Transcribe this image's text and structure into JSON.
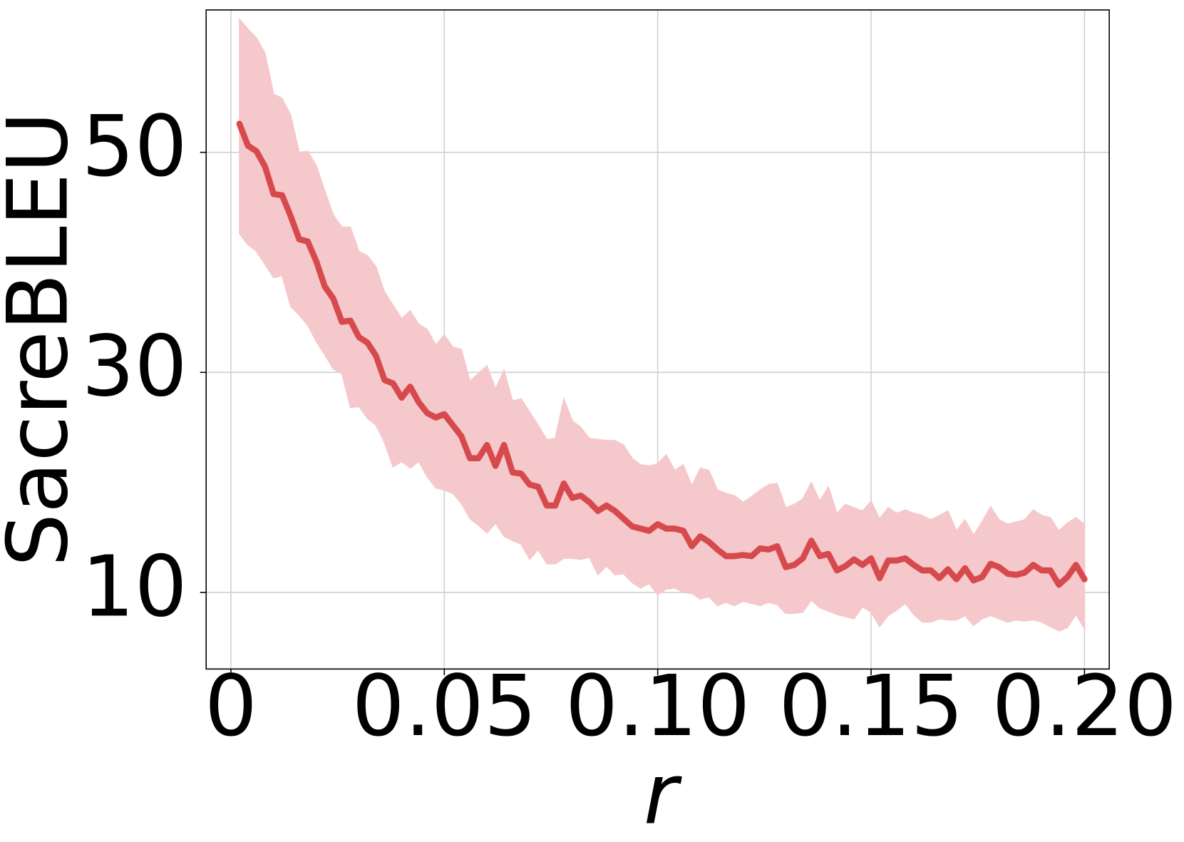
{
  "chart_data": {
    "type": "line",
    "xlabel": "r",
    "ylabel": "SacreBLEU",
    "xlim": [
      -0.0058,
      0.2058
    ],
    "ylim": [
      3.04,
      62.94
    ],
    "xticks": [
      0,
      0.05,
      {
        "value": 0.1,
        "label": "0.10"
      },
      0.15,
      {
        "value": 0.2,
        "label": "0.20"
      }
    ],
    "yticks": [
      10,
      30,
      50
    ],
    "grid": true,
    "x": [
      0.002,
      0.004,
      0.006,
      0.008,
      0.01,
      0.012,
      0.014,
      0.016,
      0.018,
      0.02,
      0.022,
      0.024,
      0.026,
      0.028,
      0.03,
      0.032,
      0.034,
      0.036,
      0.038,
      0.04,
      0.042,
      0.044,
      0.046,
      0.048,
      0.05,
      0.052,
      0.054,
      0.056,
      0.058,
      0.06,
      0.062,
      0.064,
      0.066,
      0.068,
      0.07,
      0.072,
      0.074,
      0.076,
      0.078,
      0.08,
      0.082,
      0.084,
      0.086,
      0.088,
      0.09,
      0.092,
      0.094,
      0.096,
      0.098,
      0.1,
      0.102,
      0.104,
      0.106,
      0.108,
      0.11,
      0.112,
      0.114,
      0.116,
      0.118,
      0.12,
      0.122,
      0.124,
      0.126,
      0.128,
      0.13,
      0.132,
      0.134,
      0.136,
      0.138,
      0.14,
      0.142,
      0.144,
      0.146,
      0.148,
      0.15,
      0.152,
      0.154,
      0.156,
      0.158,
      0.16,
      0.162,
      0.164,
      0.166,
      0.168,
      0.17,
      0.172,
      0.174,
      0.176,
      0.178,
      0.18,
      0.182,
      0.184,
      0.186,
      0.188,
      0.19,
      0.192,
      0.194,
      0.196,
      0.198,
      0.2
    ],
    "series": [
      {
        "color": "#d64a4d",
        "band_color": "#f5c9cb",
        "values": [
          52.6,
          50.6,
          50.1,
          48.7,
          46.2,
          46.1,
          44.2,
          42.1,
          41.9,
          40.1,
          37.8,
          36.7,
          34.6,
          34.7,
          33.2,
          32.7,
          31.5,
          29.3,
          29.0,
          27.7,
          28.7,
          27.3,
          26.3,
          25.9,
          26.2,
          25.2,
          24.2,
          22.2,
          22.2,
          23.4,
          21.5,
          23.4,
          20.9,
          20.8,
          19.8,
          19.6,
          17.9,
          17.9,
          19.9,
          18.6,
          18.8,
          18.2,
          17.4,
          17.9,
          17.4,
          16.7,
          16.0,
          15.8,
          15.6,
          16.2,
          15.8,
          15.8,
          15.6,
          14.2,
          15.1,
          14.6,
          13.9,
          13.3,
          13.3,
          13.4,
          13.3,
          14.0,
          13.9,
          14.2,
          12.3,
          12.5,
          13.1,
          14.7,
          13.3,
          13.5,
          12.0,
          12.4,
          13.0,
          12.5,
          13.1,
          11.3,
          12.9,
          12.9,
          13.1,
          12.5,
          12.0,
          12.0,
          11.3,
          12.1,
          11.2,
          12.2,
          11.1,
          11.4,
          12.6,
          12.3,
          11.7,
          11.6,
          11.8,
          12.5,
          12.0,
          12.0,
          10.7,
          11.4,
          12.5,
          11.2
        ],
        "upper": [
          62.1,
          61.2,
          60.4,
          59.0,
          55.3,
          54.9,
          53.4,
          50.0,
          50.1,
          48.8,
          46.5,
          44.3,
          43.2,
          43.2,
          41.0,
          40.6,
          39.6,
          37.3,
          36.1,
          34.9,
          35.6,
          34.4,
          33.9,
          32.5,
          33.4,
          32.3,
          32.1,
          29.2,
          29.9,
          30.6,
          28.5,
          30.2,
          27.4,
          27.6,
          26.4,
          25.2,
          23.9,
          24.0,
          27.6,
          25.6,
          25.0,
          24.0,
          23.9,
          23.8,
          23.8,
          23.4,
          22.2,
          21.6,
          21.5,
          21.7,
          22.5,
          21.1,
          21.6,
          19.7,
          21.3,
          21.1,
          19.3,
          19.0,
          18.8,
          18.2,
          18.7,
          19.3,
          19.8,
          19.9,
          17.7,
          18.0,
          18.5,
          20.0,
          18.3,
          19.6,
          17.2,
          18.0,
          17.7,
          17.4,
          18.3,
          16.7,
          17.7,
          17.2,
          17.5,
          17.2,
          17.0,
          16.6,
          17.0,
          17.4,
          15.6,
          16.6,
          15.2,
          16.4,
          17.8,
          16.6,
          16.2,
          16.4,
          16.6,
          17.5,
          17.0,
          16.8,
          15.6,
          16.3,
          16.8,
          16.2
        ],
        "lower": [
          42.6,
          41.6,
          41.0,
          39.8,
          38.6,
          38.8,
          36.0,
          35.2,
          34.3,
          32.8,
          31.6,
          30.3,
          29.9,
          26.8,
          26.9,
          25.8,
          25.2,
          23.6,
          21.4,
          21.9,
          21.3,
          21.9,
          20.5,
          19.5,
          19.3,
          19.0,
          18.1,
          16.7,
          16.1,
          15.4,
          16.3,
          15.1,
          14.7,
          14.4,
          13.0,
          13.9,
          12.6,
          12.6,
          13.1,
          13.1,
          13.0,
          13.2,
          11.6,
          12.4,
          11.6,
          11.7,
          10.9,
          10.4,
          10.8,
          9.8,
          10.3,
          10.4,
          10.0,
          9.9,
          9.4,
          9.6,
          8.8,
          9.1,
          8.8,
          9.2,
          9.0,
          8.8,
          9.1,
          8.9,
          8.1,
          8.1,
          8.2,
          9.3,
          8.6,
          8.3,
          8.0,
          7.8,
          7.6,
          8.7,
          8.2,
          6.9,
          7.9,
          8.4,
          9.0,
          8.0,
          7.3,
          7.3,
          7.6,
          7.5,
          7.5,
          7.9,
          7.0,
          7.6,
          7.9,
          7.6,
          7.3,
          7.5,
          7.4,
          7.5,
          7.3,
          6.9,
          6.5,
          6.8,
          8.0,
          6.7
        ]
      }
    ]
  }
}
